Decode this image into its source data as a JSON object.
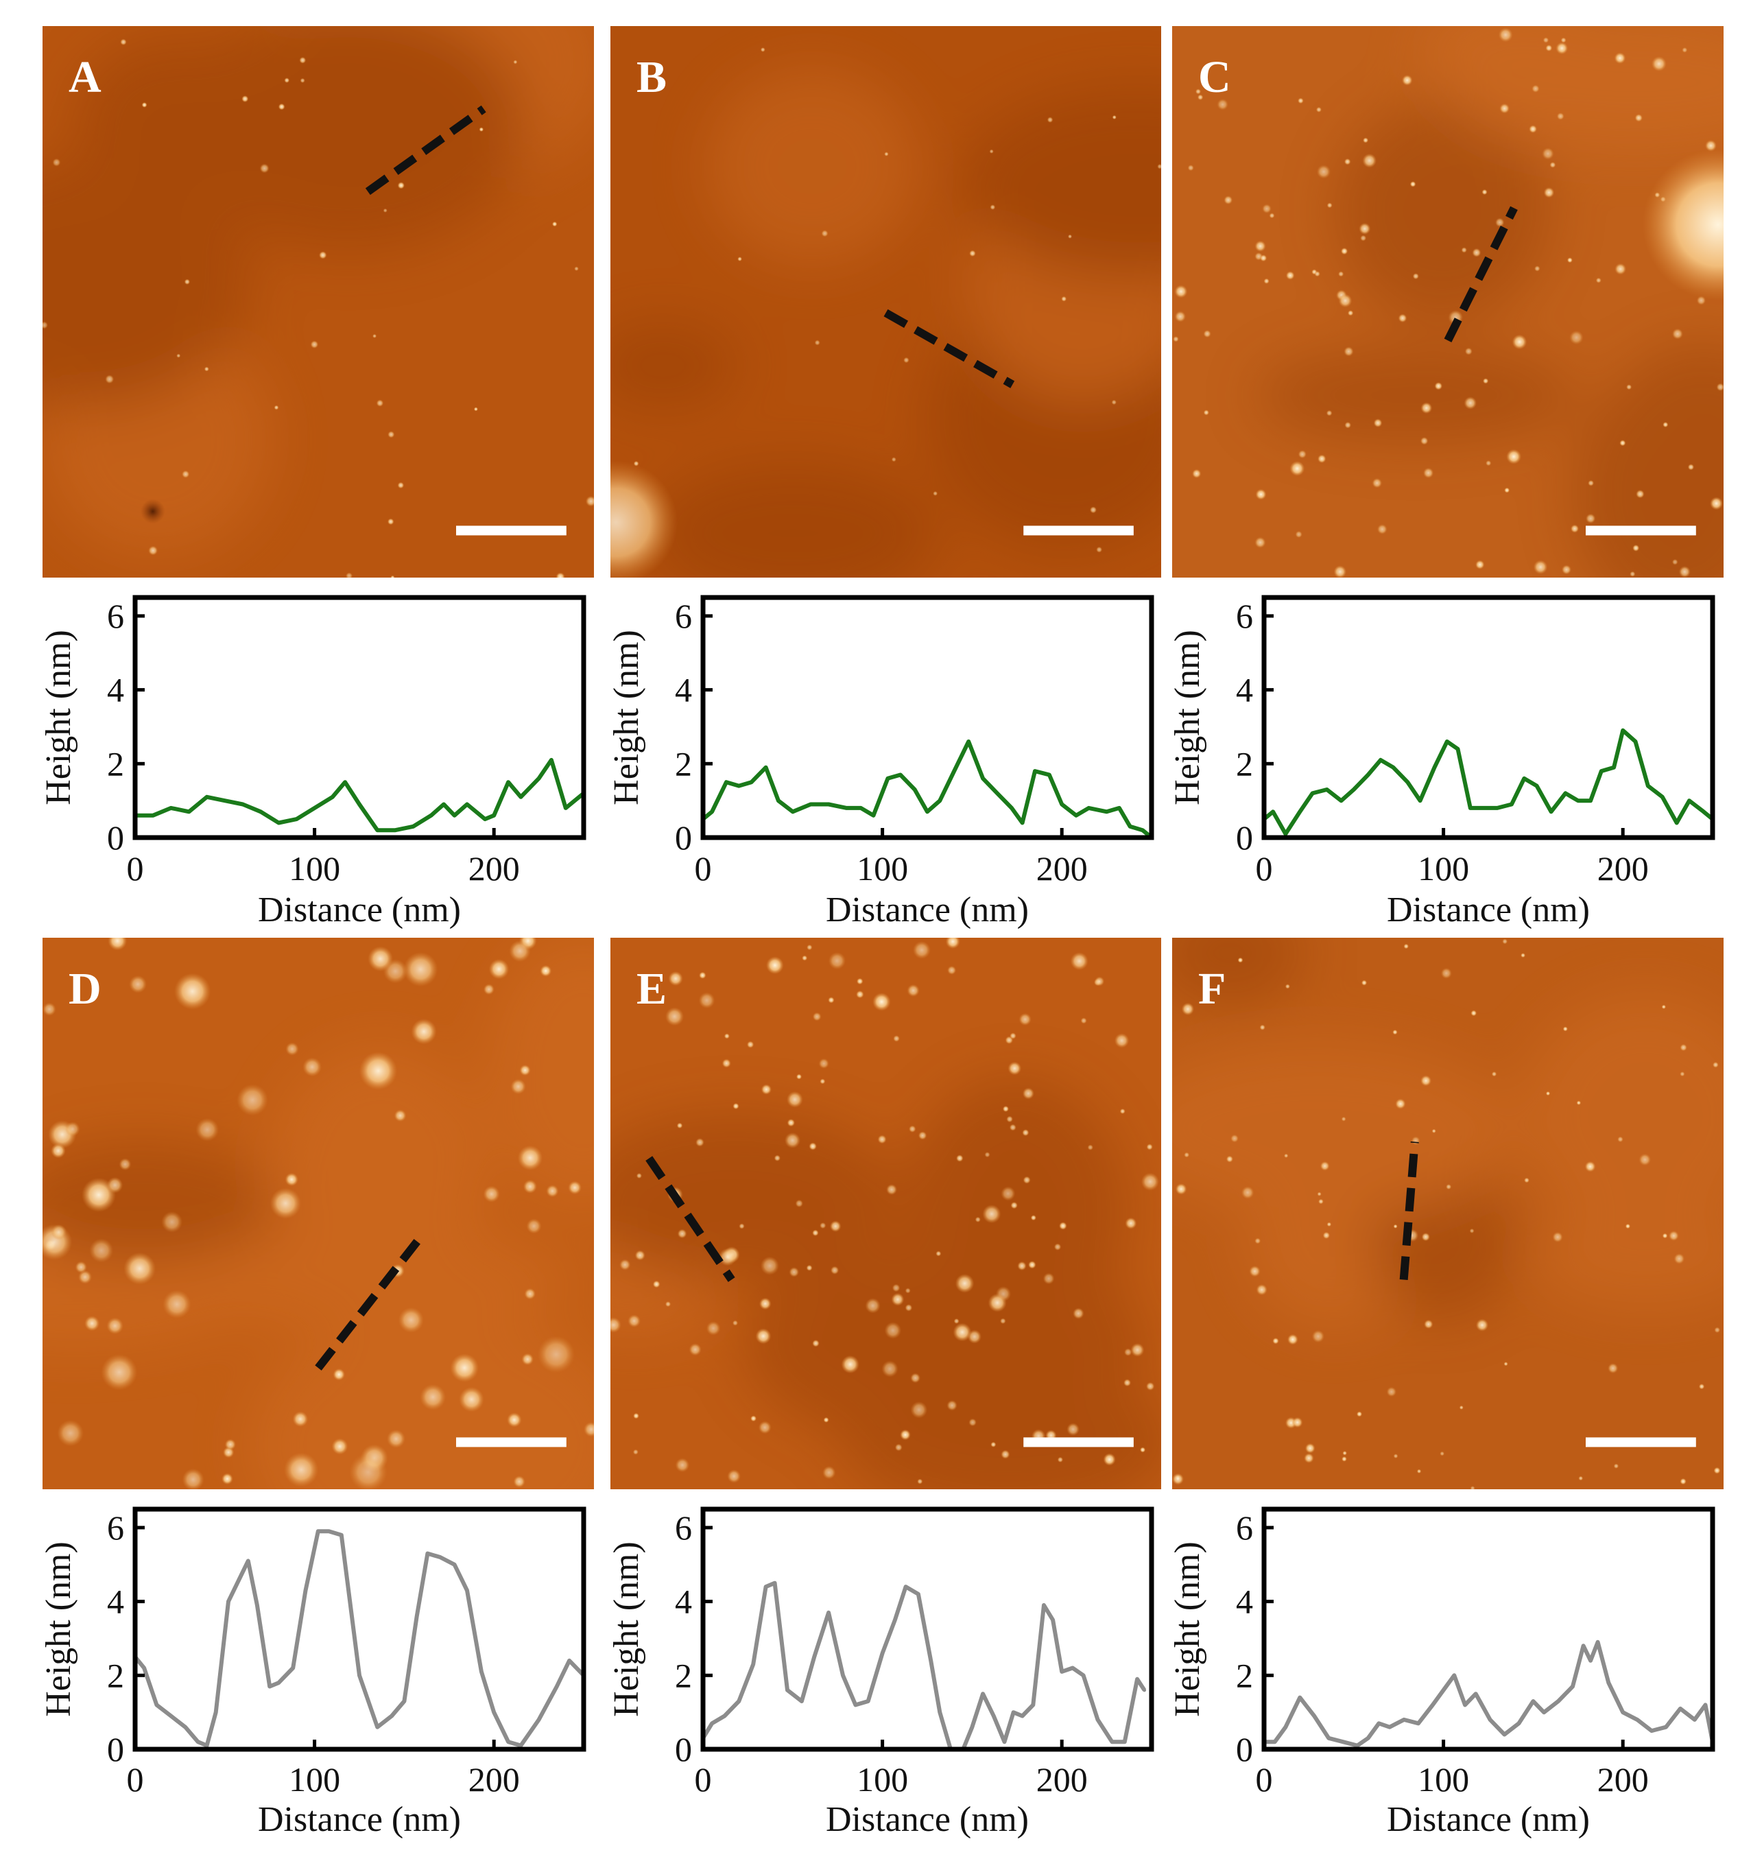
{
  "figure": {
    "panels": [
      {
        "label": "A",
        "trace_color": "#1a7a1a",
        "scan_tone": "#b8550f"
      },
      {
        "label": "B",
        "trace_color": "#1a7a1a",
        "scan_tone": "#b2500c"
      },
      {
        "label": "C",
        "trace_color": "#1a7a1a",
        "scan_tone": "#c0601a"
      },
      {
        "label": "D",
        "trace_color": "#8c8c8c",
        "scan_tone": "#c25e15"
      },
      {
        "label": "E",
        "trace_color": "#8c8c8c",
        "scan_tone": "#bf5b14"
      },
      {
        "label": "F",
        "trace_color": "#8c8c8c",
        "scan_tone": "#bd5c16"
      }
    ],
    "colors": {
      "afm_dark": "#8a3505",
      "afm_mid": "#bd5a14",
      "afm_bright": "#fff4dc",
      "profile_line": "#111111",
      "scale_bar": "#ffffff"
    }
  },
  "chart_data": [
    {
      "type": "line",
      "panel": "A",
      "title": "",
      "xlabel": "Distance (nm)",
      "ylabel": "Height (nm)",
      "xlim": [
        0,
        250
      ],
      "ylim": [
        0,
        6.5
      ],
      "xticks": [
        0,
        100,
        200
      ],
      "yticks": [
        0,
        2,
        4,
        6
      ],
      "x": [
        0,
        10,
        20,
        30,
        40,
        50,
        60,
        70,
        80,
        90,
        100,
        110,
        117,
        125,
        135,
        145,
        155,
        165,
        172,
        178,
        185,
        195,
        200,
        208,
        215,
        225,
        232,
        240,
        250
      ],
      "y": [
        0.6,
        0.6,
        0.8,
        0.7,
        1.1,
        1.0,
        0.9,
        0.7,
        0.4,
        0.5,
        0.8,
        1.1,
        1.5,
        0.9,
        0.2,
        0.2,
        0.3,
        0.6,
        0.9,
        0.6,
        0.9,
        0.5,
        0.6,
        1.5,
        1.1,
        1.6,
        2.1,
        0.8,
        1.2
      ]
    },
    {
      "type": "line",
      "panel": "B",
      "title": "",
      "xlabel": "Distance (nm)",
      "ylabel": "Height (nm)",
      "xlim": [
        0,
        250
      ],
      "ylim": [
        0,
        6.5
      ],
      "xticks": [
        0,
        100,
        200
      ],
      "yticks": [
        0,
        2,
        4,
        6
      ],
      "x": [
        0,
        5,
        13,
        20,
        27,
        35,
        42,
        50,
        60,
        70,
        80,
        88,
        95,
        103,
        110,
        118,
        125,
        132,
        140,
        148,
        156,
        164,
        172,
        178,
        185,
        193,
        200,
        208,
        215,
        225,
        232,
        238,
        245,
        250
      ],
      "y": [
        0.5,
        0.7,
        1.5,
        1.4,
        1.5,
        1.9,
        1.0,
        0.7,
        0.9,
        0.9,
        0.8,
        0.8,
        0.6,
        1.6,
        1.7,
        1.3,
        0.7,
        1.0,
        1.8,
        2.6,
        1.6,
        1.2,
        0.8,
        0.4,
        1.8,
        1.7,
        0.9,
        0.6,
        0.8,
        0.7,
        0.8,
        0.3,
        0.2,
        0.0
      ]
    },
    {
      "type": "line",
      "panel": "C",
      "title": "",
      "xlabel": "Distance (nm)",
      "ylabel": "Height (nm)",
      "xlim": [
        0,
        250
      ],
      "ylim": [
        0,
        6.5
      ],
      "xticks": [
        0,
        100,
        200
      ],
      "yticks": [
        0,
        2,
        4,
        6
      ],
      "x": [
        0,
        5,
        12,
        20,
        27,
        35,
        43,
        50,
        58,
        65,
        72,
        80,
        87,
        95,
        102,
        108,
        115,
        122,
        130,
        138,
        145,
        152,
        160,
        168,
        175,
        182,
        188,
        195,
        200,
        207,
        214,
        222,
        230,
        237,
        245,
        250
      ],
      "y": [
        0.5,
        0.7,
        0.1,
        0.7,
        1.2,
        1.3,
        1.0,
        1.3,
        1.7,
        2.1,
        1.9,
        1.5,
        1.0,
        1.9,
        2.6,
        2.4,
        0.8,
        0.8,
        0.8,
        0.9,
        1.6,
        1.4,
        0.7,
        1.2,
        1.0,
        1.0,
        1.8,
        1.9,
        2.9,
        2.6,
        1.4,
        1.1,
        0.4,
        1.0,
        0.7,
        0.5
      ]
    },
    {
      "type": "line",
      "panel": "D",
      "title": "",
      "xlabel": "Distance (nm)",
      "ylabel": "Height (nm)",
      "xlim": [
        0,
        250
      ],
      "ylim": [
        0,
        6.5
      ],
      "xticks": [
        0,
        100,
        200
      ],
      "yticks": [
        0,
        2,
        4,
        6
      ],
      "x": [
        0,
        5,
        12,
        20,
        28,
        35,
        40,
        45,
        52,
        58,
        63,
        68,
        75,
        80,
        88,
        95,
        102,
        108,
        115,
        125,
        135,
        143,
        150,
        157,
        163,
        170,
        178,
        185,
        193,
        200,
        208,
        215,
        225,
        235,
        242,
        250
      ],
      "y": [
        2.5,
        2.2,
        1.2,
        0.9,
        0.6,
        0.2,
        0.1,
        1.0,
        4.0,
        4.6,
        5.1,
        3.9,
        1.7,
        1.8,
        2.2,
        4.3,
        5.9,
        5.9,
        5.8,
        2.0,
        0.6,
        0.9,
        1.3,
        3.6,
        5.3,
        5.2,
        5.0,
        4.3,
        2.1,
        1.0,
        0.2,
        0.1,
        0.8,
        1.7,
        2.4,
        2.0
      ]
    },
    {
      "type": "line",
      "panel": "E",
      "title": "",
      "xlabel": "Distance (nm)",
      "ylabel": "Height (nm)",
      "xlim": [
        0,
        250
      ],
      "ylim": [
        0,
        6.5
      ],
      "xticks": [
        0,
        100,
        200
      ],
      "yticks": [
        0,
        2,
        4,
        6
      ],
      "x": [
        0,
        5,
        12,
        20,
        28,
        35,
        40,
        47,
        55,
        62,
        70,
        78,
        85,
        92,
        100,
        107,
        113,
        120,
        127,
        132,
        138,
        145,
        150,
        156,
        162,
        168,
        173,
        178,
        184,
        190,
        195,
        200,
        206,
        212,
        220,
        228,
        235,
        242,
        246
      ],
      "y": [
        0.3,
        0.7,
        0.9,
        1.3,
        2.3,
        4.4,
        4.5,
        1.6,
        1.3,
        2.5,
        3.7,
        2.0,
        1.2,
        1.3,
        2.6,
        3.5,
        4.4,
        4.2,
        2.4,
        1.0,
        0.0,
        0.0,
        0.6,
        1.5,
        0.9,
        0.2,
        1.0,
        0.9,
        1.2,
        3.9,
        3.5,
        2.1,
        2.2,
        2.0,
        0.8,
        0.2,
        0.2,
        1.9,
        1.6
      ]
    },
    {
      "type": "line",
      "panel": "F",
      "title": "",
      "xlabel": "Distance (nm)",
      "ylabel": "Height (nm)",
      "xlim": [
        0,
        250
      ],
      "ylim": [
        0,
        6.5
      ],
      "xticks": [
        0,
        100,
        200
      ],
      "yticks": [
        0,
        2,
        4,
        6
      ],
      "x": [
        0,
        6,
        12,
        20,
        28,
        36,
        44,
        52,
        58,
        64,
        70,
        78,
        86,
        94,
        100,
        106,
        112,
        118,
        126,
        134,
        142,
        150,
        156,
        164,
        172,
        178,
        182,
        186,
        192,
        200,
        208,
        216,
        224,
        232,
        240,
        246,
        250
      ],
      "y": [
        0.2,
        0.2,
        0.6,
        1.4,
        0.9,
        0.3,
        0.2,
        0.1,
        0.3,
        0.7,
        0.6,
        0.8,
        0.7,
        1.2,
        1.6,
        2.0,
        1.2,
        1.5,
        0.8,
        0.4,
        0.7,
        1.3,
        1.0,
        1.3,
        1.7,
        2.8,
        2.4,
        2.9,
        1.8,
        1.0,
        0.8,
        0.5,
        0.6,
        1.1,
        0.8,
        1.2,
        0.2
      ]
    }
  ]
}
